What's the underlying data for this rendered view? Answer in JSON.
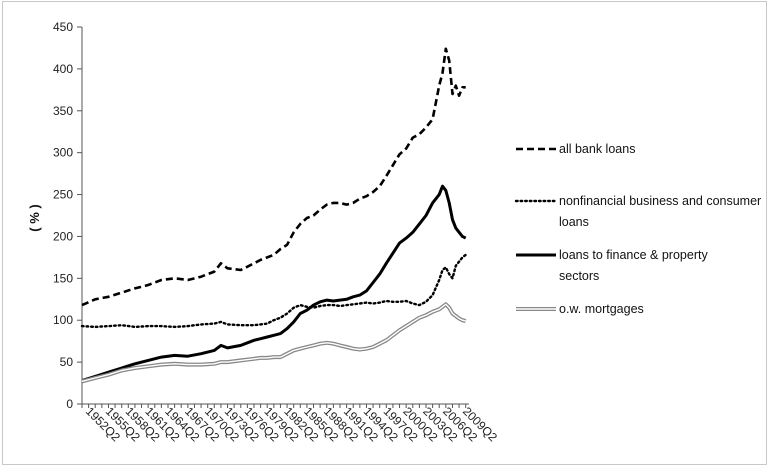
{
  "chart_data": {
    "type": "line",
    "title": "",
    "xlabel": "",
    "ylabel": "( % )",
    "ylim": [
      0,
      450
    ],
    "yticks": [
      0,
      50,
      100,
      150,
      200,
      250,
      300,
      350,
      400,
      450
    ],
    "x_range": [
      1952.25,
      2010.75
    ],
    "xtick_labels": [
      "1952Q2",
      "1955Q2",
      "1958Q2",
      "1961Q2",
      "1964Q2",
      "1967Q2",
      "1970Q2",
      "1973Q2",
      "1976Q2",
      "1979Q2",
      "1982Q2",
      "1985Q2",
      "1988Q2",
      "1991Q2",
      "1994Q2",
      "1997Q2",
      "2000Q2",
      "2003Q2",
      "2006Q2",
      "2009Q2"
    ],
    "grid": false,
    "legend_position": "right",
    "series": [
      {
        "name": "all bank loans",
        "style": "dashed",
        "color": "#000000",
        "x": [
          "1952Q2",
          "1954Q2",
          "1956Q2",
          "1958Q2",
          "1960Q2",
          "1962Q2",
          "1964Q2",
          "1966Q2",
          "1968Q2",
          "1970Q2",
          "1972Q2",
          "1973Q2",
          "1974Q2",
          "1976Q2",
          "1978Q2",
          "1979Q2",
          "1980Q2",
          "1981Q2",
          "1982Q2",
          "1983Q2",
          "1984Q2",
          "1985Q2",
          "1986Q2",
          "1987Q2",
          "1988Q2",
          "1989Q2",
          "1990Q2",
          "1991Q2",
          "1992Q2",
          "1993Q2",
          "1994Q2",
          "1995Q2",
          "1996Q2",
          "1997Q2",
          "1998Q2",
          "1999Q2",
          "2000Q2",
          "2001Q2",
          "2002Q2",
          "2003Q2",
          "2004Q2",
          "2005Q2",
          "2006Q2",
          "2006Q4",
          "2007Q2",
          "2007Q4",
          "2008Q2",
          "2008Q4",
          "2009Q2",
          "2009Q4",
          "2010Q2"
        ],
        "values": [
          118,
          125,
          128,
          133,
          138,
          142,
          148,
          150,
          148,
          152,
          158,
          168,
          162,
          160,
          168,
          172,
          175,
          178,
          185,
          190,
          205,
          215,
          222,
          225,
          232,
          238,
          240,
          240,
          238,
          240,
          245,
          248,
          253,
          260,
          272,
          285,
          298,
          305,
          318,
          322,
          330,
          340,
          380,
          395,
          424,
          410,
          370,
          380,
          368,
          378,
          378
        ]
      },
      {
        "name": "nonfinancial business and consumer loans",
        "style": "dotted",
        "color": "#000000",
        "x": [
          "1952Q2",
          "1954Q2",
          "1956Q2",
          "1958Q2",
          "1960Q2",
          "1962Q2",
          "1964Q2",
          "1966Q2",
          "1968Q2",
          "1970Q2",
          "1972Q2",
          "1973Q2",
          "1974Q2",
          "1976Q2",
          "1978Q2",
          "1979Q2",
          "1980Q2",
          "1981Q2",
          "1982Q2",
          "1983Q2",
          "1984Q2",
          "1985Q2",
          "1986Q2",
          "1987Q2",
          "1988Q2",
          "1989Q2",
          "1990Q2",
          "1991Q2",
          "1992Q2",
          "1993Q2",
          "1994Q2",
          "1995Q2",
          "1996Q2",
          "1997Q2",
          "1998Q2",
          "1999Q2",
          "2000Q2",
          "2001Q2",
          "2002Q2",
          "2003Q2",
          "2004Q2",
          "2005Q2",
          "2006Q2",
          "2006Q4",
          "2007Q2",
          "2007Q4",
          "2008Q2",
          "2008Q4",
          "2009Q2",
          "2009Q4",
          "2010Q2"
        ],
        "values": [
          93,
          92,
          93,
          94,
          92,
          93,
          93,
          92,
          93,
          95,
          96,
          98,
          95,
          94,
          94,
          95,
          96,
          100,
          103,
          108,
          115,
          118,
          116,
          115,
          117,
          118,
          118,
          117,
          118,
          119,
          120,
          121,
          120,
          121,
          123,
          122,
          122,
          123,
          120,
          118,
          122,
          130,
          148,
          160,
          163,
          155,
          150,
          165,
          170,
          175,
          178
        ]
      },
      {
        "name": "loans to finance & property sectors",
        "style": "solid-thick",
        "color": "#000000",
        "x": [
          "1952Q2",
          "1954Q2",
          "1956Q2",
          "1958Q2",
          "1960Q2",
          "1962Q2",
          "1964Q2",
          "1966Q2",
          "1968Q2",
          "1970Q2",
          "1972Q2",
          "1973Q2",
          "1974Q2",
          "1976Q2",
          "1978Q2",
          "1979Q2",
          "1980Q2",
          "1981Q2",
          "1982Q2",
          "1983Q2",
          "1984Q2",
          "1985Q2",
          "1986Q2",
          "1987Q2",
          "1988Q2",
          "1989Q2",
          "1990Q2",
          "1991Q2",
          "1992Q2",
          "1993Q2",
          "1994Q2",
          "1995Q2",
          "1996Q2",
          "1997Q2",
          "1998Q2",
          "1999Q2",
          "2000Q2",
          "2001Q2",
          "2002Q2",
          "2003Q2",
          "2004Q2",
          "2005Q2",
          "2006Q2",
          "2006Q4",
          "2007Q2",
          "2007Q4",
          "2008Q2",
          "2008Q4",
          "2009Q2",
          "2009Q4",
          "2010Q2"
        ],
        "values": [
          28,
          33,
          38,
          43,
          48,
          52,
          56,
          58,
          57,
          60,
          64,
          70,
          67,
          70,
          76,
          78,
          80,
          82,
          84,
          90,
          98,
          108,
          112,
          118,
          122,
          124,
          123,
          124,
          125,
          128,
          130,
          135,
          145,
          155,
          168,
          180,
          192,
          198,
          205,
          215,
          225,
          240,
          250,
          260,
          255,
          240,
          220,
          210,
          205,
          200,
          198
        ]
      },
      {
        "name": "o.w. mortgages",
        "style": "double",
        "color": "#888888",
        "x": [
          "1952Q2",
          "1954Q2",
          "1956Q2",
          "1958Q2",
          "1960Q2",
          "1962Q2",
          "1964Q2",
          "1966Q2",
          "1968Q2",
          "1970Q2",
          "1972Q2",
          "1973Q2",
          "1974Q2",
          "1976Q2",
          "1978Q2",
          "1979Q2",
          "1980Q2",
          "1981Q2",
          "1982Q2",
          "1983Q2",
          "1984Q2",
          "1985Q2",
          "1986Q2",
          "1987Q2",
          "1988Q2",
          "1989Q2",
          "1990Q2",
          "1991Q2",
          "1992Q2",
          "1993Q2",
          "1994Q2",
          "1995Q2",
          "1996Q2",
          "1997Q2",
          "1998Q2",
          "1999Q2",
          "2000Q2",
          "2001Q2",
          "2002Q2",
          "2003Q2",
          "2004Q2",
          "2005Q2",
          "2006Q2",
          "2006Q4",
          "2007Q2",
          "2007Q4",
          "2008Q2",
          "2008Q4",
          "2009Q2",
          "2009Q4",
          "2010Q2"
        ],
        "values": [
          27,
          31,
          35,
          40,
          43,
          45,
          47,
          48,
          47,
          47,
          48,
          50,
          50,
          52,
          54,
          55,
          55,
          56,
          56,
          60,
          64,
          66,
          68,
          70,
          72,
          73,
          72,
          70,
          68,
          66,
          65,
          66,
          68,
          72,
          76,
          82,
          88,
          93,
          98,
          103,
          106,
          110,
          113,
          116,
          119,
          115,
          108,
          105,
          102,
          100,
          99
        ]
      }
    ]
  }
}
